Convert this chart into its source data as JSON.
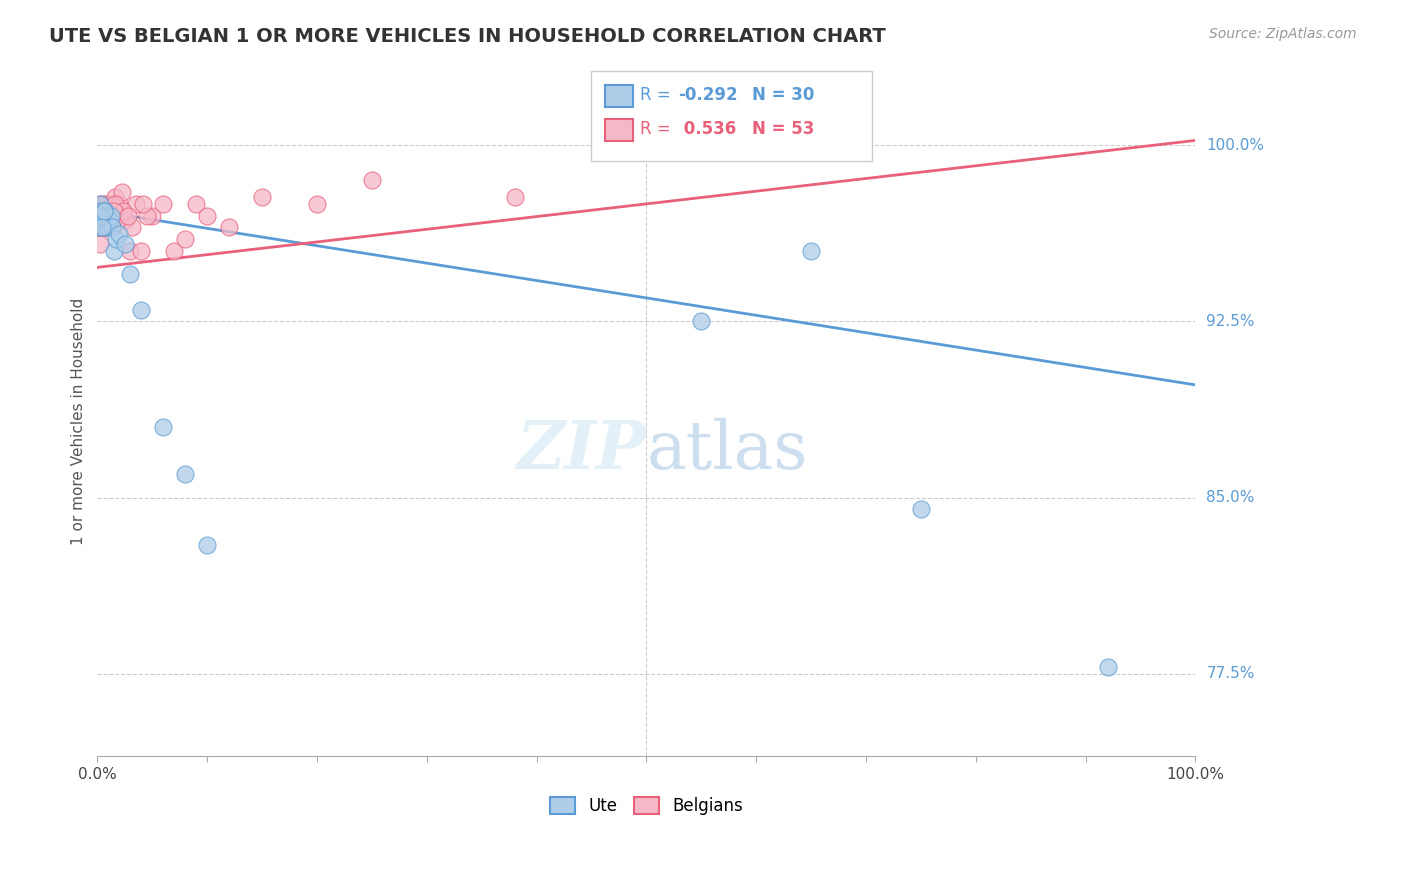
{
  "title": "UTE VS BELGIAN 1 OR MORE VEHICLES IN HOUSEHOLD CORRELATION CHART",
  "source": "Source: ZipAtlas.com",
  "ylabel": "1 or more Vehicles in Household",
  "xlim": [
    0.0,
    100.0
  ],
  "ylim": [
    74.0,
    102.5
  ],
  "yticks_right": [
    77.5,
    85.0,
    92.5,
    100.0
  ],
  "ytick_right_labels": [
    "77.5%",
    "85.0%",
    "92.5%",
    "100.0%"
  ],
  "legend_ute_label": "Ute",
  "legend_belgians_label": "Belgians",
  "ute_R": -0.292,
  "ute_N": 30,
  "belgians_R": 0.536,
  "belgians_N": 53,
  "ute_color": "#aecde8",
  "belgians_color": "#f5b8c8",
  "ute_line_color": "#5b9bd5",
  "belgians_line_color": "#e8607a",
  "ute_line_x0": 0,
  "ute_line_y0": 97.2,
  "ute_line_x1": 100,
  "ute_line_y1": 89.8,
  "bel_line_x0": 0,
  "bel_line_y0": 94.8,
  "bel_line_x1": 100,
  "bel_line_y1": 100.2,
  "ute_x": [
    0.1,
    0.15,
    0.2,
    0.3,
    0.4,
    0.5,
    0.6,
    0.7,
    0.8,
    0.9,
    1.0,
    1.1,
    1.2,
    1.3,
    1.5,
    1.7,
    2.0,
    2.5,
    3.0,
    4.0,
    6.0,
    8.0,
    10.0,
    55.0,
    65.0,
    75.0,
    92.0,
    0.25,
    0.45,
    0.65
  ],
  "ute_y": [
    97.0,
    96.5,
    97.5,
    97.2,
    96.8,
    97.0,
    96.5,
    97.2,
    96.8,
    97.0,
    96.5,
    96.8,
    97.0,
    96.5,
    95.5,
    96.0,
    96.2,
    95.8,
    94.5,
    93.0,
    88.0,
    86.0,
    83.0,
    92.5,
    95.5,
    84.5,
    77.8,
    97.0,
    96.5,
    97.2
  ],
  "bel_x": [
    0.1,
    0.15,
    0.2,
    0.3,
    0.35,
    0.4,
    0.5,
    0.55,
    0.6,
    0.7,
    0.75,
    0.8,
    0.9,
    1.0,
    1.1,
    1.15,
    1.2,
    1.3,
    1.4,
    1.5,
    1.6,
    1.8,
    2.0,
    2.2,
    2.5,
    3.0,
    3.5,
    4.0,
    5.0,
    6.0,
    7.0,
    8.0,
    9.0,
    10.0,
    12.0,
    15.0,
    20.0,
    25.0,
    0.25,
    0.45,
    0.65,
    1.05,
    1.35,
    1.65,
    2.3,
    3.2,
    4.5,
    0.85,
    0.95,
    1.55,
    2.8,
    4.2,
    38.0
  ],
  "bel_y": [
    97.0,
    96.8,
    97.5,
    97.2,
    96.5,
    96.8,
    97.5,
    97.0,
    97.2,
    96.5,
    97.0,
    97.5,
    97.2,
    97.0,
    96.5,
    97.2,
    96.8,
    97.5,
    96.5,
    97.0,
    97.8,
    97.0,
    97.5,
    98.0,
    96.8,
    95.5,
    97.5,
    95.5,
    97.0,
    97.5,
    95.5,
    96.0,
    97.5,
    97.0,
    96.5,
    97.8,
    97.5,
    98.5,
    95.8,
    96.5,
    97.0,
    97.0,
    96.5,
    97.5,
    97.2,
    96.5,
    97.0,
    96.5,
    97.0,
    97.2,
    97.0,
    97.5,
    97.8
  ]
}
